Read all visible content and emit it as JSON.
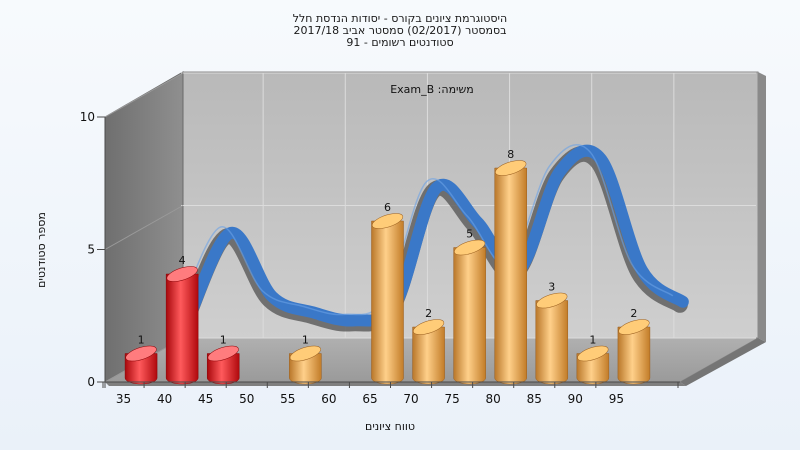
{
  "chart_data": {
    "type": "bar",
    "title_lines": [
      "היסטוגרמת ציונים בקורס - יסודות הנדסת חלל",
      "בסמסטר  (02/2017)  סמסטר אביב 2017/18",
      "סטודנטים רשומים - 91"
    ],
    "annotation": "משימה: Exam_B",
    "xlabel": "טווח ציונים",
    "ylabel": "מספר סטודנטים",
    "categories": [
      "35",
      "40",
      "45",
      "50",
      "55",
      "60",
      "65",
      "70",
      "75",
      "80",
      "85",
      "90",
      "95"
    ],
    "series": [
      {
        "values": [
          1,
          4,
          1,
          0,
          1,
          0,
          6,
          2,
          5,
          8,
          3,
          1,
          2
        ],
        "colors": [
          "#e8282a",
          "#e8282a",
          "#e8282a",
          "#e8a83c",
          "#e8a83c",
          "#e8a83c",
          "#e8a83c",
          "#e8a83c",
          "#e8a83c",
          "#e8a83c",
          "#e8a83c",
          "#e8a83c",
          "#e8a83c"
        ]
      }
    ],
    "curve": {
      "type": "smooth-line",
      "color": "#3a78c8",
      "points": [
        {
          "x": 37.5,
          "y": 1.5
        },
        {
          "x": 42.5,
          "y": 4.6
        },
        {
          "x": 47.5,
          "y": 2.2
        },
        {
          "x": 52.5,
          "y": 1.6
        },
        {
          "x": 57.5,
          "y": 1.3
        },
        {
          "x": 62.5,
          "y": 1.9
        },
        {
          "x": 67.5,
          "y": 6.3
        },
        {
          "x": 72.5,
          "y": 5.0
        },
        {
          "x": 77.5,
          "y": 3.2
        },
        {
          "x": 82.5,
          "y": 6.9
        },
        {
          "x": 87.5,
          "y": 7.4
        },
        {
          "x": 92.5,
          "y": 3.2
        },
        {
          "x": 97.5,
          "y": 2.0
        }
      ]
    },
    "yticks": [
      0,
      5,
      10
    ],
    "ylim": [
      0,
      10
    ],
    "grid": true,
    "legend": "none"
  }
}
